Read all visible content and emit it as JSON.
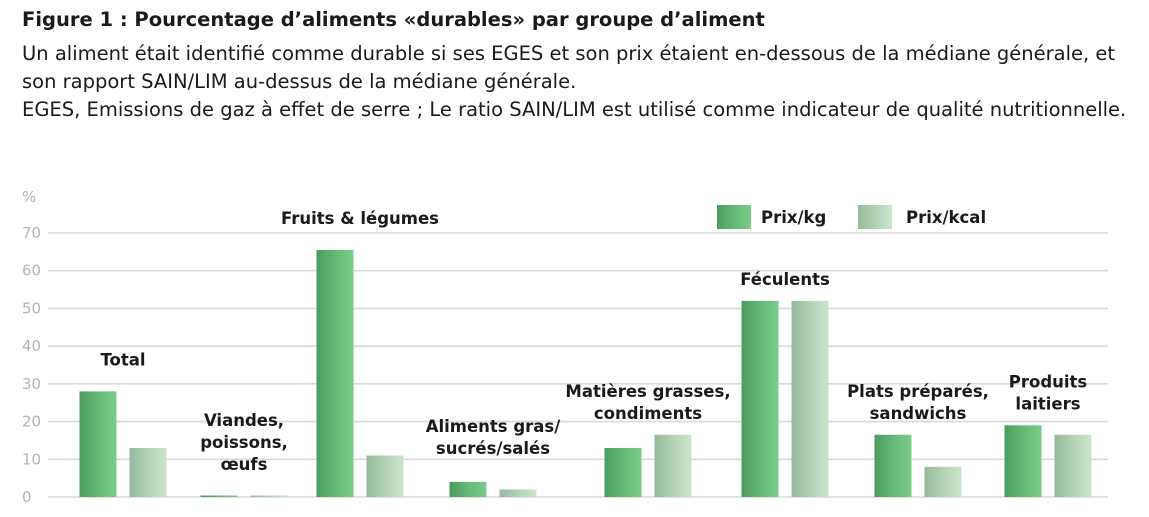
{
  "figure": {
    "title": "Figure 1 : Pourcentage d’aliments «durables» par groupe d’aliment",
    "description_1": "Un aliment était identifié comme durable si ses EGES et son prix étaient en-dessous de la médiane générale, et son rapport SAIN/LIM au-dessus de la médiane générale.",
    "description_2": "EGES, Emissions de gaz à effet de serre ; Le ratio SAIN/LIM est utilisé comme indicateur de qualité nutritionnelle."
  },
  "colors": {
    "series_1": "#5cab6e",
    "series_2": "#a9cfaa",
    "grid": "#d9d9d9",
    "axis_text": "#b3b3b3"
  },
  "chart_data": {
    "type": "bar",
    "ylabel": "%",
    "ylim": [
      0,
      70
    ],
    "yticks": [
      0,
      10,
      20,
      30,
      40,
      50,
      60,
      70
    ],
    "grid": true,
    "legend_position": "top-right",
    "categories": [
      [
        "Total"
      ],
      [
        "Viandes,",
        "poissons,",
        "œufs"
      ],
      [
        "Fruits & légumes"
      ],
      [
        "Aliments gras/",
        "sucrés/salés"
      ],
      [
        "Matières grasses,",
        "condiments"
      ],
      [
        "Féculents"
      ],
      [
        "Plats préparés,",
        "sandwichs"
      ],
      [
        "Produits",
        "laitiers"
      ]
    ],
    "series": [
      {
        "name": "Prix/kg",
        "values": [
          28,
          0.3,
          65.5,
          4,
          13,
          52,
          16.5,
          19
        ]
      },
      {
        "name": "Prix/kcal",
        "values": [
          13,
          0.3,
          11,
          2,
          16.5,
          52,
          8,
          16.5
        ]
      }
    ]
  }
}
